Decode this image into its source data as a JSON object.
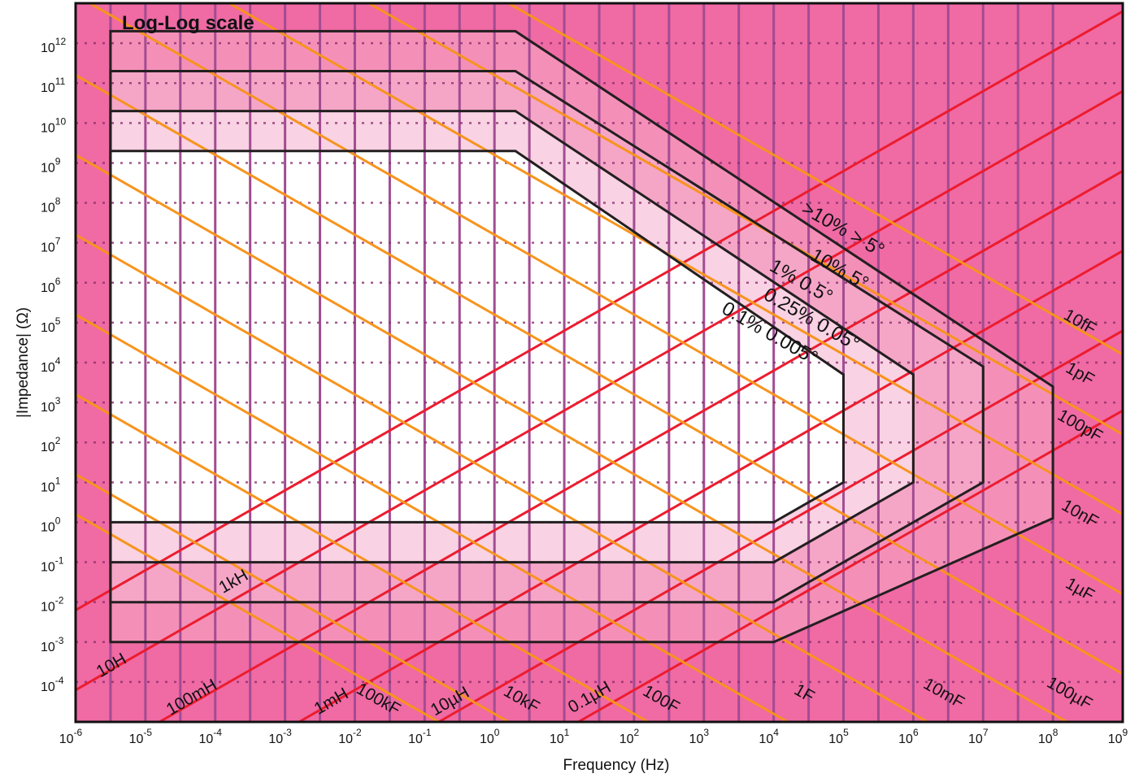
{
  "chart_data": {
    "type": "line",
    "title": "Log-Log scale",
    "xlabel": "Frequency (Hz)",
    "ylabel": "|Impedance| (Ω)",
    "x_scale": "log",
    "y_scale": "log",
    "xlim": [
      1e-06,
      1000000000.0
    ],
    "ylim": [
      1e-05,
      10000000000000.0
    ],
    "grid": true,
    "x_ticks": [
      {
        "exp": -6,
        "label": "10",
        "sup": "-6"
      },
      {
        "exp": -5,
        "label": "10",
        "sup": "-5"
      },
      {
        "exp": -4,
        "label": "10",
        "sup": "-4"
      },
      {
        "exp": -3,
        "label": "10",
        "sup": "-3"
      },
      {
        "exp": -2,
        "label": "10",
        "sup": "-2"
      },
      {
        "exp": -1,
        "label": "10",
        "sup": "-1"
      },
      {
        "exp": 0,
        "label": "10",
        "sup": "0"
      },
      {
        "exp": 1,
        "label": "10",
        "sup": "1"
      },
      {
        "exp": 2,
        "label": "10",
        "sup": "2"
      },
      {
        "exp": 3,
        "label": "10",
        "sup": "3"
      },
      {
        "exp": 4,
        "label": "10",
        "sup": "4"
      },
      {
        "exp": 5,
        "label": "10",
        "sup": "5"
      },
      {
        "exp": 6,
        "label": "10",
        "sup": "6"
      },
      {
        "exp": 7,
        "label": "10",
        "sup": "7"
      },
      {
        "exp": 8,
        "label": "10",
        "sup": "8"
      },
      {
        "exp": 9,
        "label": "10",
        "sup": "9"
      }
    ],
    "y_ticks": [
      {
        "exp": 12,
        "label": "10",
        "sup": "12"
      },
      {
        "exp": 11,
        "label": "10",
        "sup": "11"
      },
      {
        "exp": 10,
        "label": "10",
        "sup": "10"
      },
      {
        "exp": 9,
        "label": "10",
        "sup": "9"
      },
      {
        "exp": 8,
        "label": "10",
        "sup": "8"
      },
      {
        "exp": 7,
        "label": "10",
        "sup": "7"
      },
      {
        "exp": 6,
        "label": "10",
        "sup": "6"
      },
      {
        "exp": 5,
        "label": "10",
        "sup": "5"
      },
      {
        "exp": 4,
        "label": "10",
        "sup": "4"
      },
      {
        "exp": 3,
        "label": "10",
        "sup": "3"
      },
      {
        "exp": 2,
        "label": "10",
        "sup": "2"
      },
      {
        "exp": 1,
        "label": "10",
        "sup": "1"
      },
      {
        "exp": 0,
        "label": "10",
        "sup": "0"
      },
      {
        "exp": -1,
        "label": "10",
        "sup": "-1"
      },
      {
        "exp": -2,
        "label": "10",
        "sup": "-2"
      },
      {
        "exp": -3,
        "label": "10",
        "sup": "-3"
      },
      {
        "exp": -4,
        "label": "10",
        "sup": "-4"
      }
    ],
    "accuracy_regions": [
      {
        "label": ">10% > 5°",
        "fill": "#f490b8",
        "polygon_log": [
          [
            -5.5,
            12.3
          ],
          [
            0.3,
            12.3
          ],
          [
            8,
            3.4
          ],
          [
            8,
            0.1
          ],
          [
            4,
            -3
          ],
          [
            -5.5,
            -3
          ]
        ]
      },
      {
        "label": "10% 5°",
        "fill": "#f5a6c7",
        "polygon_log": [
          [
            -5.5,
            11.3
          ],
          [
            0.3,
            11.3
          ],
          [
            7,
            3.9
          ],
          [
            7,
            1
          ],
          [
            4,
            -2
          ],
          [
            -5.5,
            -2
          ]
        ]
      },
      {
        "label": "1% 0.5°",
        "fill": "#f9d2e3",
        "polygon_log": [
          [
            -5.5,
            10.3
          ],
          [
            0.3,
            10.3
          ],
          [
            6,
            3.7
          ],
          [
            6,
            1
          ],
          [
            4,
            -1
          ],
          [
            -5.5,
            -1
          ]
        ]
      },
      {
        "label": "0.25% 0.05°",
        "fill": "#ffffff",
        "polygon_log": [
          [
            -5.5,
            9.3
          ],
          [
            0.3,
            9.3
          ],
          [
            5,
            3.7
          ],
          [
            5,
            1
          ],
          [
            4,
            0
          ],
          [
            -5.5,
            0
          ]
        ]
      },
      {
        "label": "0.1% 0.005°",
        "fill": null,
        "polygon_log": null
      }
    ],
    "inductance_lines": [
      {
        "label": "10H",
        "log_value": 1
      },
      {
        "label": "1kH",
        "log_value": 3
      },
      {
        "label": "100mH",
        "log_value": -1
      },
      {
        "label": "1mH",
        "log_value": -3
      },
      {
        "label": "10µH",
        "log_value": -5
      },
      {
        "label": "0.1µH",
        "log_value": -7
      }
    ],
    "capacitance_lines": [
      {
        "label": "10fF",
        "log_value": -14
      },
      {
        "label": "1pF",
        "log_value": -12
      },
      {
        "label": "100pF",
        "log_value": -10
      },
      {
        "label": "10nF",
        "log_value": -8
      },
      {
        "label": "1µF",
        "log_value": -6
      },
      {
        "label": "100µF",
        "log_value": -4
      },
      {
        "label": "10mF",
        "log_value": -2
      },
      {
        "label": "1F",
        "log_value": 0
      },
      {
        "label": "100F",
        "log_value": 2
      },
      {
        "label": "10kF",
        "log_value": 4
      },
      {
        "label": "100kF",
        "log_value": 5
      }
    ],
    "colors": {
      "background": "#f06aa4",
      "vertical_grid": "#a24c92",
      "horizontal_grid": "#8b2f6e",
      "inductance_line": "#ec1c2e",
      "capacitance_line": "#f7941d",
      "region_border": "#231f20"
    }
  }
}
